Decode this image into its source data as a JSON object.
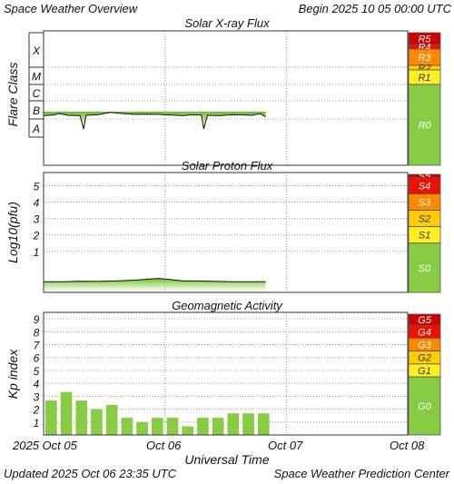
{
  "header": {
    "title": "Space Weather Overview",
    "begin_label": "Begin",
    "begin_value": "2025 10 05 00:00 UTC"
  },
  "footer": {
    "updated_label": "Updated",
    "updated_value": "2025 Oct 06 23:35 UTC",
    "source": "Space Weather Prediction Center"
  },
  "x_axis": {
    "label": "Universal Time",
    "ticks": [
      "2025 Oct 05",
      "Oct 06",
      "Oct 07",
      "Oct 08"
    ],
    "range_days": [
      0,
      3
    ]
  },
  "chart_data": [
    {
      "type": "area",
      "title": "Solar X-ray Flux",
      "ylabel": "Flare Class",
      "y_ticks": [
        "A",
        "B",
        "C",
        "M",
        "X"
      ],
      "ylim": [
        "A",
        "X"
      ],
      "grid": true,
      "x_units": "days since 2025-10-05 00:00 UTC",
      "points": [
        [
          0,
          1.18
        ],
        [
          0.08,
          1.22
        ],
        [
          0.13,
          1.3
        ],
        [
          0.2,
          1.2
        ],
        [
          0.3,
          1.18
        ],
        [
          0.33,
          0.45
        ],
        [
          0.35,
          1.2
        ],
        [
          0.45,
          1.24
        ],
        [
          0.55,
          1.36
        ],
        [
          0.65,
          1.3
        ],
        [
          0.75,
          1.25
        ],
        [
          0.85,
          1.26
        ],
        [
          0.95,
          1.25
        ],
        [
          1.05,
          1.22
        ],
        [
          1.15,
          1.18
        ],
        [
          1.2,
          1.22
        ],
        [
          1.3,
          1.22
        ],
        [
          1.32,
          0.45
        ],
        [
          1.35,
          1.2
        ],
        [
          1.45,
          1.18
        ],
        [
          1.55,
          1.23
        ],
        [
          1.65,
          1.22
        ],
        [
          1.72,
          1.2
        ],
        [
          1.78,
          1.3
        ],
        [
          1.83,
          1.12
        ]
      ],
      "scale": [
        {
          "label": "R5",
          "color": "#cc0000"
        },
        {
          "label": "R4",
          "color": "#ee1100"
        },
        {
          "label": "R3",
          "color": "#ff8800"
        },
        {
          "label": "R2",
          "color": "#ffcc00"
        },
        {
          "label": "R1",
          "color": "#ffee22"
        },
        {
          "label": "R0",
          "color": "#88cc44"
        }
      ]
    },
    {
      "type": "area",
      "title": "Solar Proton Flux",
      "ylabel": "Log10(pfu)",
      "y_ticks": [
        1,
        2,
        3,
        4,
        5
      ],
      "ylim": [
        -1.5,
        5.8
      ],
      "grid": true,
      "x_units": "days since 2025-10-05 00:00 UTC",
      "points": [
        [
          0,
          -0.85
        ],
        [
          0.15,
          -0.85
        ],
        [
          0.3,
          -0.82
        ],
        [
          0.45,
          -0.83
        ],
        [
          0.6,
          -0.8
        ],
        [
          0.75,
          -0.75
        ],
        [
          0.85,
          -0.7
        ],
        [
          0.95,
          -0.65
        ],
        [
          1.05,
          -0.72
        ],
        [
          1.15,
          -0.8
        ],
        [
          1.25,
          -0.8
        ],
        [
          1.4,
          -0.82
        ],
        [
          1.55,
          -0.85
        ],
        [
          1.7,
          -0.85
        ],
        [
          1.83,
          -0.85
        ]
      ],
      "scale": [
        {
          "label": "S5",
          "color": "#cc0000"
        },
        {
          "label": "S4",
          "color": "#ee1100"
        },
        {
          "label": "S3",
          "color": "#ff8800"
        },
        {
          "label": "S2",
          "color": "#ffcc00"
        },
        {
          "label": "S1",
          "color": "#ffee22"
        },
        {
          "label": "S0",
          "color": "#88cc44"
        }
      ]
    },
    {
      "type": "bar",
      "title": "Geomagnetic Activity",
      "ylabel": "Kp index",
      "y_ticks": [
        1,
        2,
        3,
        4,
        5,
        6,
        7,
        8,
        9
      ],
      "ylim": [
        0,
        9.5
      ],
      "grid": true,
      "x_units": "days since 2025-10-05 00:00 UTC",
      "bin_days": 0.125,
      "values": [
        2.67,
        3.33,
        2.67,
        2.0,
        2.33,
        1.33,
        1.0,
        1.33,
        1.33,
        0.67,
        1.33,
        1.33,
        1.67,
        1.67,
        1.67
      ],
      "color": "#88cc44",
      "scale": [
        {
          "label": "G5",
          "color": "#cc0000"
        },
        {
          "label": "G4",
          "color": "#ee1100"
        },
        {
          "label": "G3",
          "color": "#ff8800"
        },
        {
          "label": "G2",
          "color": "#ffcc00"
        },
        {
          "label": "G1",
          "color": "#ffee22"
        },
        {
          "label": "G0",
          "color": "#88cc44"
        }
      ]
    }
  ]
}
